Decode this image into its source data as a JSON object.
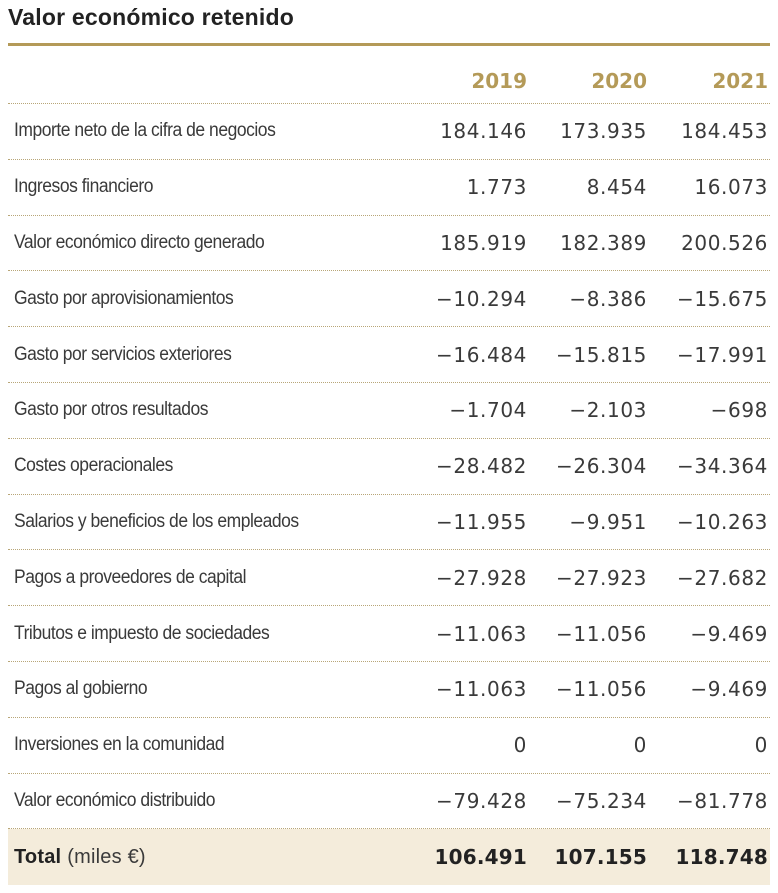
{
  "title": "Valor económico retenido",
  "colors": {
    "accent": "#b49a58",
    "total_bg": "#f4ecdb"
  },
  "years": [
    "2019",
    "2020",
    "2021"
  ],
  "rows": [
    {
      "label": "Importe neto de la cifra de negocios",
      "values": [
        "184.146",
        "173.935",
        "184.453"
      ]
    },
    {
      "label": "Ingresos financiero",
      "values": [
        "1.773",
        "8.454",
        "16.073"
      ]
    },
    {
      "label": "Valor económico directo generado",
      "values": [
        "185.919",
        "182.389",
        "200.526"
      ]
    },
    {
      "label": "Gasto por aprovisionamientos",
      "values": [
        "−10.294",
        "−8.386",
        "−15.675"
      ]
    },
    {
      "label": "Gasto por servicios exteriores",
      "values": [
        "−16.484",
        "−15.815",
        "−17.991"
      ]
    },
    {
      "label": "Gasto por otros resultados",
      "values": [
        "−1.704",
        "−2.103",
        "−698"
      ]
    },
    {
      "label": "Costes operacionales",
      "values": [
        "−28.482",
        "−26.304",
        "−34.364"
      ]
    },
    {
      "label": "Salarios y beneficios de los empleados",
      "values": [
        "−11.955",
        "−9.951",
        "−10.263"
      ]
    },
    {
      "label": "Pagos a proveedores de capital",
      "values": [
        "−27.928",
        "−27.923",
        "−27.682"
      ]
    },
    {
      "label": "Tributos e impuesto de sociedades",
      "values": [
        "−11.063",
        "−11.056",
        "−9.469"
      ]
    },
    {
      "label": "Pagos al gobierno",
      "values": [
        "−11.063",
        "−11.056",
        "−9.469"
      ]
    },
    {
      "label": "Inversiones en la comunidad",
      "values": [
        "0",
        "0",
        "0"
      ]
    },
    {
      "label": "Valor económico distribuido",
      "values": [
        "−79.428",
        "−75.234",
        "−81.778"
      ]
    }
  ],
  "total": {
    "label_bold": "Total",
    "label_unit": "(miles €)",
    "values": [
      "106.491",
      "107.155",
      "118.748"
    ]
  }
}
